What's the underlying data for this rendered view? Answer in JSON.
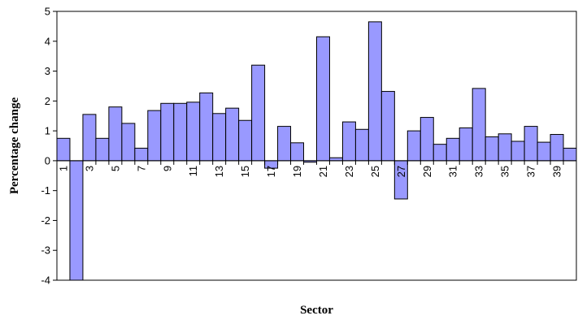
{
  "chart_data": {
    "type": "bar",
    "xlabel": "Sector",
    "ylabel": "Percentage change",
    "ylim": [
      -4,
      5
    ],
    "yticks": [
      -4,
      -3,
      -2,
      -1,
      0,
      1,
      2,
      3,
      4,
      5
    ],
    "categories": [
      "1",
      "2",
      "3",
      "4",
      "5",
      "6",
      "7",
      "8",
      "9",
      "10",
      "11",
      "12",
      "13",
      "14",
      "15",
      "16",
      "17",
      "18",
      "19",
      "20",
      "21",
      "22",
      "23",
      "24",
      "25",
      "26",
      "27",
      "28",
      "29",
      "30",
      "31",
      "32",
      "33",
      "34",
      "35",
      "36",
      "37",
      "38",
      "39",
      "40"
    ],
    "category_labels_shown": [
      "1",
      "3",
      "5",
      "7",
      "9",
      "11",
      "13",
      "15",
      "17",
      "19",
      "21",
      "23",
      "25",
      "27",
      "29",
      "31",
      "33",
      "35",
      "37",
      "39"
    ],
    "values": [
      0.75,
      -4.0,
      1.55,
      0.75,
      1.8,
      1.25,
      0.42,
      1.68,
      1.92,
      1.92,
      1.96,
      2.27,
      1.58,
      1.76,
      1.35,
      3.2,
      -0.25,
      1.15,
      0.6,
      -0.05,
      4.15,
      0.1,
      1.3,
      1.05,
      4.65,
      2.32,
      -1.28,
      1.0,
      1.45,
      0.55,
      0.75,
      1.1,
      2.42,
      0.8,
      0.9,
      0.65,
      1.15,
      0.62,
      0.88,
      0.42
    ],
    "bar_color": "#9999ff",
    "grid": false,
    "legend": "none"
  }
}
